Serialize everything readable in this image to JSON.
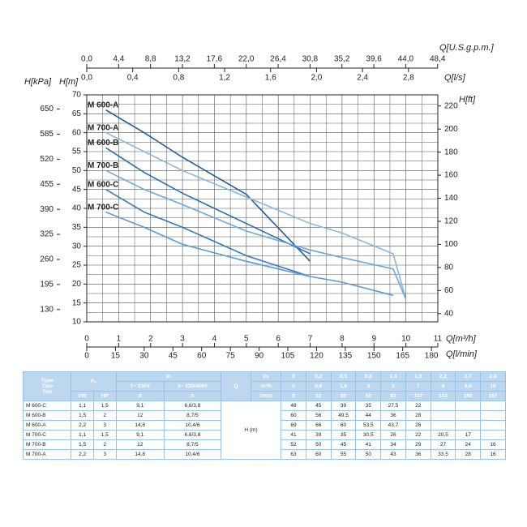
{
  "chart_data": {
    "type": "line",
    "xlabel": "Q[m³/h]",
    "xlim": [
      0,
      11
    ],
    "xticks": [
      0,
      1,
      2,
      3,
      4,
      5,
      6,
      7,
      8,
      9,
      10,
      11
    ],
    "x2label": "Q[l/min]",
    "x2lim": [
      0,
      183.33
    ],
    "x2ticks": [
      0,
      15,
      30,
      45,
      60,
      75,
      90,
      105,
      120,
      135,
      150,
      165,
      180
    ],
    "x3label": "Q[l/s]",
    "x3lim": [
      0,
      3.0556
    ],
    "x3ticks": [
      {
        "value": 0,
        "label": "0,0"
      },
      {
        "value": 0.4,
        "label": "0,4"
      },
      {
        "value": 0.8,
        "label": "0,8"
      },
      {
        "value": 1.2,
        "label": "1,2"
      },
      {
        "value": 1.6,
        "label": "1,6"
      },
      {
        "value": 2.0,
        "label": "2,0"
      },
      {
        "value": 2.4,
        "label": "2,4"
      },
      {
        "value": 2.8,
        "label": "2,8"
      }
    ],
    "x4label": "Q[U.S.g.p.m.]",
    "x4lim": [
      0,
      48.43
    ],
    "x4ticks": [
      {
        "value": 0,
        "label": "0,0"
      },
      {
        "value": 4.4,
        "label": "4,4"
      },
      {
        "value": 8.8,
        "label": "8,8"
      },
      {
        "value": 13.2,
        "label": "13,2"
      },
      {
        "value": 17.6,
        "label": "17,6"
      },
      {
        "value": 22.0,
        "label": "22,0"
      },
      {
        "value": 26.4,
        "label": "26,4"
      },
      {
        "value": 30.8,
        "label": "30,8"
      },
      {
        "value": 35.2,
        "label": "35,2"
      },
      {
        "value": 39.6,
        "label": "39,6"
      },
      {
        "value": 44.0,
        "label": "44,0"
      },
      {
        "value": 48.4,
        "label": "48,4"
      }
    ],
    "ylabel": "H[m]",
    "ylim": [
      10,
      70
    ],
    "yticks": [
      10,
      15,
      20,
      25,
      30,
      35,
      40,
      45,
      50,
      55,
      60,
      65,
      70
    ],
    "y2label": "H[ft]",
    "y2lim": [
      32.81,
      229.66
    ],
    "y2ticks": [
      40,
      60,
      80,
      100,
      120,
      140,
      160,
      180,
      200,
      220
    ],
    "y3label": "H[kPa]",
    "y3lim": [
      98.1,
      686.7
    ],
    "y3ticks": [
      130,
      195,
      260,
      325,
      390,
      455,
      520,
      585,
      650
    ],
    "grid": true,
    "series": [
      {
        "name": "M 600-A",
        "color": "#1f5c97",
        "x": [
          0.6,
          1.8,
          3,
          5,
          7
        ],
        "values": [
          66,
          60,
          53.5,
          43.7,
          26
        ]
      },
      {
        "name": "M 700-A",
        "color": "#86b8de",
        "x": [
          0.6,
          1.8,
          3,
          5,
          7,
          8,
          9.6,
          10
        ],
        "values": [
          60,
          55,
          50,
          43,
          36,
          33.5,
          28,
          16
        ]
      },
      {
        "name": "M 600-B",
        "color": "#2a6eae",
        "x": [
          0.6,
          1.8,
          3,
          5,
          7
        ],
        "values": [
          56,
          49.5,
          44,
          36,
          28
        ]
      },
      {
        "name": "M 700-B",
        "color": "#6ea7d6",
        "x": [
          0.6,
          1.8,
          3,
          5,
          7,
          8,
          9.6,
          10
        ],
        "values": [
          50,
          45,
          41,
          34,
          29,
          27,
          24,
          16
        ]
      },
      {
        "name": "M 600-C",
        "color": "#3479bb",
        "x": [
          0.6,
          1.8,
          3,
          5,
          7
        ],
        "values": [
          45,
          39,
          35,
          27.5,
          22
        ]
      },
      {
        "name": "M 700-C",
        "color": "#5c9bd2",
        "x": [
          0.6,
          1.8,
          3,
          5,
          7,
          8,
          9.6
        ],
        "values": [
          39,
          35,
          30.5,
          26,
          22,
          20.5,
          17
        ]
      }
    ]
  },
  "table": {
    "type_header": [
      "Type",
      "Tipo",
      "Тип"
    ],
    "p2": "P₂",
    "in": "In",
    "in_1": "1~ 230V",
    "in_3": "3~ 230/400V",
    "q": "Q",
    "units": [
      "kW",
      "HP",
      "A",
      "A"
    ],
    "q_units": [
      "l/s",
      "m³/h",
      "l/min"
    ],
    "q_values": [
      [
        "0",
        "0,2",
        "0,5",
        "0,8",
        "1,4",
        "1,9",
        "2,2",
        "2,7",
        "2,8"
      ],
      [
        "0",
        "0,6",
        "1,8",
        "3",
        "5",
        "7",
        "8",
        "9,6",
        "10"
      ],
      [
        "0",
        "10",
        "30",
        "50",
        "83",
        "117",
        "133",
        "160",
        "167"
      ]
    ],
    "h_label": "H (m)",
    "rows": [
      [
        "M 600-C",
        "1,1",
        "1,5",
        "9,1",
        "6,6/3,8"
      ],
      [
        "M 600-B",
        "1,5",
        "2",
        "12",
        "8,7/5"
      ],
      [
        "M 600-A",
        "2,2",
        "3",
        "14,8",
        "10,4/6"
      ],
      [
        "M 700-C",
        "1,1",
        "1,5",
        "9,1",
        "6,6/3,8"
      ],
      [
        "M 700-B",
        "1,5",
        "2",
        "12",
        "8,7/5"
      ],
      [
        "M 700-A",
        "2,2",
        "3",
        "14,8",
        "10,4/6"
      ]
    ],
    "h_values": [
      [
        "48",
        "45",
        "39",
        "35",
        "27,5",
        "22"
      ],
      [
        "60",
        "56",
        "49,5",
        "44",
        "36",
        "28"
      ],
      [
        "69",
        "66",
        "60",
        "53,5",
        "43,7",
        "26"
      ],
      [
        "41",
        "39",
        "35",
        "30,5",
        "26",
        "22",
        "20,5",
        "17"
      ],
      [
        "52",
        "50",
        "45",
        "41",
        "34",
        "29",
        "27",
        "24",
        "16"
      ],
      [
        "63",
        "60",
        "55",
        "50",
        "43",
        "36",
        "33,5",
        "28",
        "16"
      ]
    ]
  }
}
